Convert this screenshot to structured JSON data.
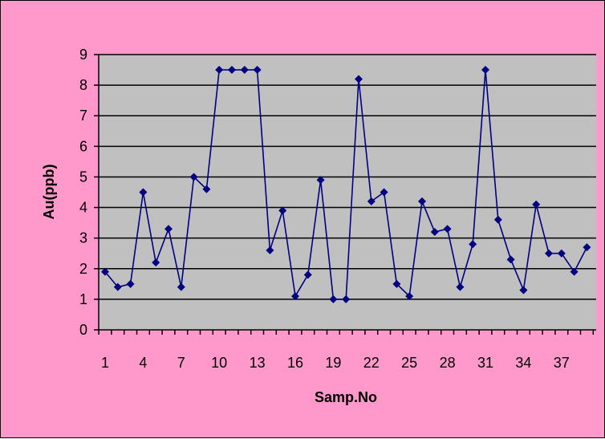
{
  "chart_data": {
    "type": "line",
    "title": "",
    "xlabel": "Samp.No",
    "ylabel": "Au(ppb)",
    "ylim": [
      0,
      9
    ],
    "yticks": [
      "0",
      "1",
      "2",
      "3",
      "4",
      "5",
      "6",
      "7",
      "8",
      "9"
    ],
    "xticks": [
      "1",
      "4",
      "7",
      "10",
      "13",
      "16",
      "19",
      "22",
      "25",
      "28",
      "31",
      "34",
      "37"
    ],
    "grid": "horizontal",
    "legend": "none",
    "series": [
      {
        "x": [
          1,
          2,
          3,
          4,
          5,
          6,
          7,
          8,
          9,
          10,
          11,
          12,
          13,
          14,
          15,
          16,
          17,
          18,
          19,
          20,
          21,
          22,
          23,
          24,
          25,
          26,
          27,
          28,
          29,
          30,
          31,
          32,
          33,
          34,
          35,
          36,
          37,
          38,
          39
        ],
        "values": [
          1.9,
          1.4,
          1.5,
          4.5,
          2.2,
          3.3,
          1.4,
          5.0,
          4.6,
          8.5,
          8.5,
          8.5,
          8.5,
          2.6,
          3.9,
          1.1,
          1.8,
          4.9,
          1.0,
          1.0,
          8.2,
          4.2,
          4.5,
          1.5,
          1.1,
          4.2,
          3.2,
          3.3,
          1.4,
          2.8,
          8.5,
          3.6,
          2.3,
          1.3,
          4.1,
          2.5,
          2.5,
          1.9,
          2.7
        ]
      }
    ],
    "colors": {
      "background": "#ff99cc",
      "plot_area": "#c0c0c0",
      "line": "#000080",
      "gridline": "#000000"
    }
  }
}
